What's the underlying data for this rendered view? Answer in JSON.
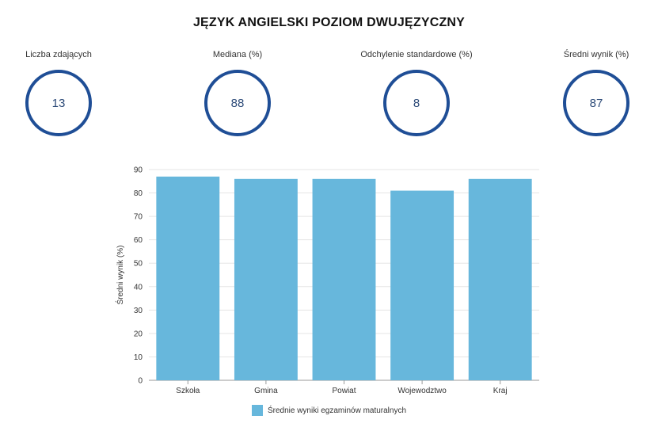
{
  "header": {
    "title": "JĘZYK ANGIELSKI POZIOM DWUJĘZYCZNY"
  },
  "stats": [
    {
      "label": "Liczba zdających",
      "value": "13"
    },
    {
      "label": "Mediana (%)",
      "value": "88"
    },
    {
      "label": "Odchylenie standardowe (%)",
      "value": "8"
    },
    {
      "label": "Średni wynik (%)",
      "value": "87"
    }
  ],
  "colors": {
    "ring": "#1f4e96",
    "bar": "#67b7dc",
    "grid": "#e5e5e5",
    "axis": "#666666"
  },
  "chart_data": {
    "type": "bar",
    "title": "",
    "xlabel": "",
    "ylabel": "Średni wynik (%)",
    "categories": [
      "Szkoła",
      "Gmina",
      "Powiat",
      "Wojewodztwo",
      "Kraj"
    ],
    "series": [
      {
        "name": "Średnie wyniki egzaminów maturalnych",
        "values": [
          87,
          86,
          86,
          81,
          86
        ]
      }
    ],
    "ylim": [
      0,
      90
    ],
    "yticks": [
      0,
      10,
      20,
      30,
      40,
      50,
      60,
      70,
      80,
      90
    ],
    "grid": true,
    "legend": "bottom-center"
  }
}
